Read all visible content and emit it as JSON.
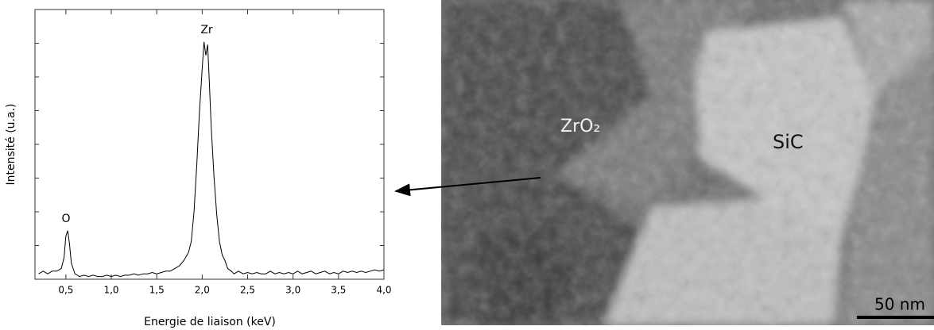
{
  "chart_data": {
    "type": "line",
    "xlabel": "Energie de liaison (keV)",
    "ylabel": "Intensité (u.a.)",
    "annotations": [
      "O",
      "Zr"
    ],
    "color": "#000000",
    "x": [
      0.2,
      0.25,
      0.3,
      0.35,
      0.4,
      0.45,
      0.48,
      0.5,
      0.52,
      0.54,
      0.56,
      0.6,
      0.65,
      0.7,
      0.75,
      0.8,
      0.85,
      0.9,
      0.95,
      1.0,
      1.05,
      1.1,
      1.15,
      1.2,
      1.25,
      1.3,
      1.35,
      1.4,
      1.45,
      1.5,
      1.55,
      1.6,
      1.65,
      1.7,
      1.75,
      1.8,
      1.85,
      1.88,
      1.91,
      1.94,
      1.97,
      2.0,
      2.02,
      2.04,
      2.06,
      2.08,
      2.1,
      2.13,
      2.16,
      2.19,
      2.22,
      2.25,
      2.28,
      2.32,
      2.35,
      2.4,
      2.45,
      2.5,
      2.55,
      2.6,
      2.65,
      2.7,
      2.75,
      2.8,
      2.85,
      2.9,
      2.95,
      3.0,
      3.05,
      3.1,
      3.15,
      3.2,
      3.25,
      3.3,
      3.35,
      3.4,
      3.45,
      3.5,
      3.55,
      3.6,
      3.65,
      3.7,
      3.75,
      3.8,
      3.85,
      3.9,
      3.95,
      4.0
    ],
    "values": [
      2,
      3,
      2,
      3,
      3,
      4,
      8,
      16,
      18,
      13,
      6,
      2,
      1,
      1.5,
      1,
      1.5,
      1,
      1,
      1.5,
      1,
      1.5,
      1,
      1.5,
      1.5,
      2,
      1.5,
      2,
      2,
      2.5,
      2,
      2.5,
      3,
      3,
      4,
      5,
      7,
      10,
      14,
      25,
      42,
      62,
      78,
      88,
      83,
      87,
      72,
      56,
      38,
      24,
      14,
      9,
      7,
      4,
      3,
      2,
      3,
      2,
      2.5,
      2,
      2.5,
      2,
      2,
      3,
      2,
      2.5,
      2,
      2.5,
      2,
      3,
      2,
      2.5,
      3,
      2,
      2.5,
      3,
      2,
      2.5,
      2,
      3,
      2.5,
      3,
      2.5,
      3,
      2.5,
      3,
      3.5,
      3,
      3.5
    ],
    "xlim": [
      0.16,
      4.0
    ],
    "ylim": [
      0,
      100
    ],
    "xticks": [
      {
        "value": 0.5,
        "label": "0,5"
      },
      {
        "value": 1.0,
        "label": "1,0"
      },
      {
        "value": 1.5,
        "label": "1,5"
      },
      {
        "value": 2.0,
        "label": "2,0"
      },
      {
        "value": 2.5,
        "label": "2,5"
      },
      {
        "value": 3.0,
        "label": "3,0"
      },
      {
        "value": 3.5,
        "label": "3,5"
      },
      {
        "value": 4.0,
        "label": "4,0"
      }
    ],
    "yticks": [
      0,
      12.5,
      25,
      37.5,
      50,
      62.5,
      75,
      87.5,
      100
    ]
  },
  "image": {
    "labels": [
      "ZrO₂",
      "SiC"
    ],
    "scale_bar": "50 nm"
  }
}
